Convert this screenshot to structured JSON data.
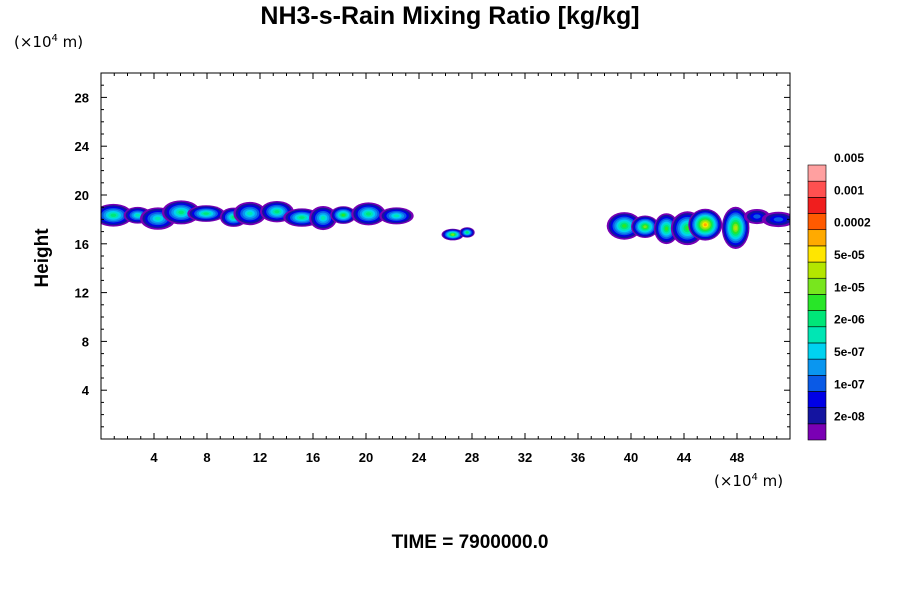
{
  "chart_data": {
    "type": "heatmap",
    "title": "NH3-s-Rain Mixing Ratio [kg/kg]",
    "xlabel": "",
    "ylabel": "Height",
    "x_unit": {
      "prefix": "(×10",
      "exp": "4",
      "suffix": " m)"
    },
    "y_unit": {
      "prefix": "(×10",
      "exp": "4",
      "suffix": " m)"
    },
    "xlim": [
      0,
      52
    ],
    "ylim": [
      0,
      30
    ],
    "x_ticks": [
      4,
      8,
      12,
      16,
      20,
      24,
      28,
      32,
      36,
      40,
      44,
      48
    ],
    "y_ticks": [
      4,
      8,
      12,
      16,
      20,
      24,
      28
    ],
    "colorbar": {
      "levels": [
        "2e-08",
        "1e-07",
        "5e-07",
        "2e-06",
        "1e-05",
        "5e-05",
        "0.0002",
        "0.001",
        "0.005"
      ],
      "colors": [
        "#7a00b4",
        "#1414a0",
        "#0000e6",
        "#0a5ae6",
        "#0a96f0",
        "#00d2f0",
        "#00e6b4",
        "#00e678",
        "#28e628",
        "#78e61e",
        "#b4e600",
        "#ffe600",
        "#ffaa00",
        "#ff5a00",
        "#f01e1e",
        "#ff5050",
        "#ffa0a0"
      ]
    },
    "clouds": [
      {
        "x": [
          0,
          23
        ],
        "y": [
          17.4,
          19.3
        ],
        "peak": 8
      },
      {
        "x": [
          26.3,
          28.3
        ],
        "y": [
          16.3,
          17.5
        ],
        "peak": 10
      },
      {
        "x": [
          38.8,
          43.5
        ],
        "y": [
          16.2,
          18.8
        ],
        "peak": 10
      },
      {
        "x": [
          43.2,
          48.6
        ],
        "y": [
          15.8,
          19.0
        ],
        "peak": 12
      },
      {
        "x": [
          48.6,
          52
        ],
        "y": [
          17.5,
          18.7
        ],
        "peak": 4
      }
    ],
    "time_label": "TIME = 7900000.0"
  }
}
